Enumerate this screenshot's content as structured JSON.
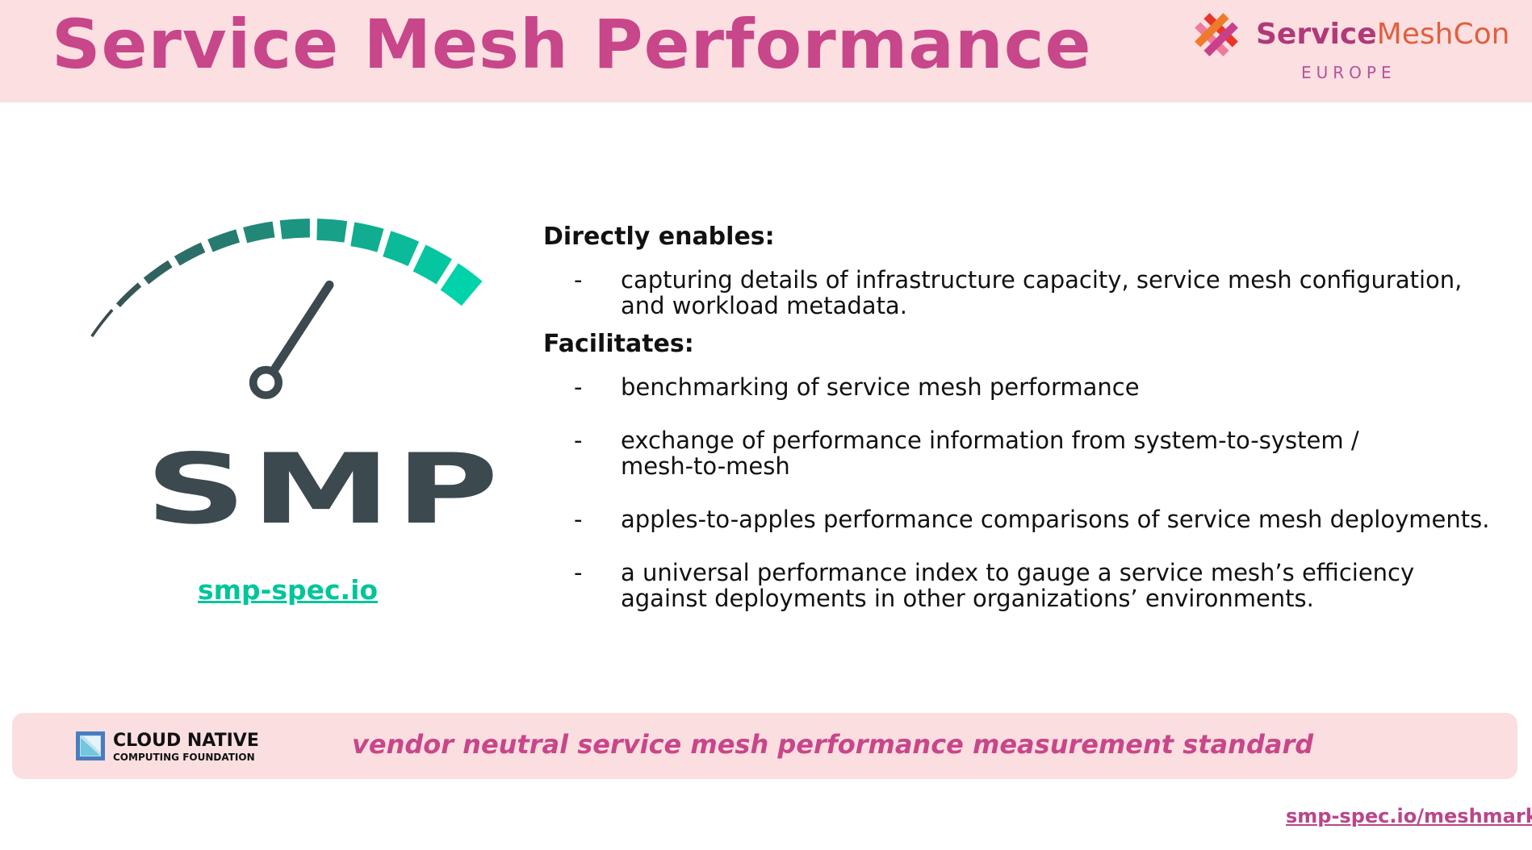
{
  "header": {
    "title": "Service Mesh Performance",
    "event_logo": {
      "name_bold": "Service",
      "name_light": "MeshCon",
      "region": "EUROPE"
    }
  },
  "logo": {
    "wordmark": "SMP",
    "link": "smp-spec.io"
  },
  "content": {
    "sections": [
      {
        "heading": "Directly enables:",
        "items": [
          "capturing details of infrastructure capacity, service mesh configuration, and workload metadata."
        ]
      },
      {
        "heading": "Facilitates:",
        "items": [
          "benchmarking of service mesh performance",
          "exchange of performance information from system-to-system / mesh-to-mesh",
          "apples-to-apples performance comparisons of service mesh deployments.",
          "a universal performance index to gauge a service mesh’s efficiency against deployments in other organizations’ environments."
        ]
      }
    ],
    "dash": "-"
  },
  "footer": {
    "cncf_line1": "CLOUD NATIVE",
    "cncf_line2": "COMPUTING FOUNDATION",
    "tagline": "vendor neutral service mesh performance measurement standard"
  },
  "bottom_link": "smp-spec.io/meshmark",
  "colors": {
    "accent": "#c8468a",
    "teal": "#00d3a9",
    "dark": "#3c494f",
    "band": "#fcdfe1"
  }
}
